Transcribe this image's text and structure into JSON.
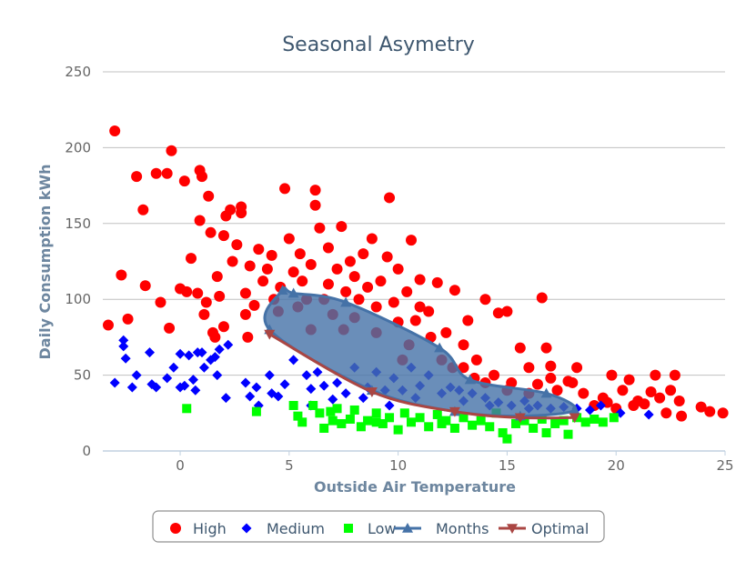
{
  "chart_data": {
    "type": "scatter",
    "title": "Seasonal Asymetry",
    "xlabel": "Outside Air Temperature",
    "ylabel": "Daily Consumption kWh",
    "xlim": [
      -3.55,
      25
    ],
    "ylim": [
      0,
      250
    ],
    "xticks": [
      0,
      5,
      10,
      15,
      20,
      25
    ],
    "yticks": [
      0,
      50,
      100,
      150,
      200,
      250
    ],
    "grid": "horizontal",
    "legend_placement": "bottom",
    "series": [
      {
        "name": "High",
        "marker": "circle",
        "color": "#FF0000",
        "points": [
          [
            -3.3,
            83
          ],
          [
            -3,
            211
          ],
          [
            -2.7,
            116
          ],
          [
            -2.4,
            87
          ],
          [
            -2,
            181
          ],
          [
            -1.7,
            159
          ],
          [
            -1.6,
            109
          ],
          [
            -1.1,
            183
          ],
          [
            -0.9,
            98
          ],
          [
            -0.6,
            183
          ],
          [
            -0.4,
            198
          ],
          [
            -0.5,
            81
          ],
          [
            0,
            107
          ],
          [
            0.2,
            178
          ],
          [
            0.3,
            105
          ],
          [
            0.5,
            127
          ],
          [
            0.8,
            104
          ],
          [
            0.9,
            152
          ],
          [
            0.9,
            185
          ],
          [
            1,
            181
          ],
          [
            1.1,
            90
          ],
          [
            1.2,
            98
          ],
          [
            1.3,
            168
          ],
          [
            1.4,
            144
          ],
          [
            1.5,
            78
          ],
          [
            1.7,
            115
          ],
          [
            1.8,
            102
          ],
          [
            2,
            142
          ],
          [
            2.1,
            155
          ],
          [
            2.3,
            159
          ],
          [
            2.4,
            125
          ],
          [
            2.6,
            136
          ],
          [
            2.8,
            161
          ],
          [
            2.8,
            157
          ],
          [
            3,
            104
          ],
          [
            3.1,
            75
          ],
          [
            3.2,
            122
          ],
          [
            3.4,
            96
          ],
          [
            3.6,
            133
          ],
          [
            3.8,
            112
          ],
          [
            4,
            120
          ],
          [
            4.2,
            129
          ],
          [
            4.3,
            100
          ],
          [
            4.5,
            92
          ],
          [
            4.8,
            173
          ],
          [
            5,
            140
          ],
          [
            5.2,
            118
          ],
          [
            5.4,
            95
          ],
          [
            5.6,
            112
          ],
          [
            6,
            123
          ],
          [
            6.2,
            172
          ],
          [
            6.2,
            162
          ],
          [
            6.4,
            147
          ],
          [
            6.6,
            100
          ],
          [
            6.8,
            134
          ],
          [
            7.2,
            120
          ],
          [
            7.4,
            148
          ],
          [
            7.6,
            105
          ],
          [
            8,
            115
          ],
          [
            8.4,
            130
          ],
          [
            8.6,
            108
          ],
          [
            8.8,
            140
          ],
          [
            9.2,
            112
          ],
          [
            9.6,
            167
          ],
          [
            9.8,
            98
          ],
          [
            10,
            120
          ],
          [
            10.4,
            105
          ],
          [
            10.6,
            139
          ],
          [
            10.8,
            86
          ],
          [
            11,
            113
          ],
          [
            11.4,
            92
          ],
          [
            11.8,
            111
          ],
          [
            12.2,
            78
          ],
          [
            12.6,
            106
          ],
          [
            13,
            70
          ],
          [
            13.2,
            86
          ],
          [
            13.6,
            60
          ],
          [
            14,
            100
          ],
          [
            14.4,
            50
          ],
          [
            14.6,
            91
          ],
          [
            15,
            92
          ],
          [
            15.2,
            45
          ],
          [
            15.6,
            68
          ],
          [
            16,
            55
          ],
          [
            16.4,
            44
          ],
          [
            16.6,
            101
          ],
          [
            16.8,
            68
          ],
          [
            17,
            56
          ],
          [
            17.3,
            40
          ],
          [
            17.8,
            46
          ],
          [
            18.2,
            55
          ],
          [
            18.5,
            38
          ],
          [
            19,
            30
          ],
          [
            19.4,
            35
          ],
          [
            19.8,
            50
          ],
          [
            20,
            28
          ],
          [
            20.3,
            40
          ],
          [
            20.6,
            47
          ],
          [
            21,
            33
          ],
          [
            21.3,
            31
          ],
          [
            21.6,
            39
          ],
          [
            21.8,
            50
          ],
          [
            22,
            35
          ],
          [
            22.3,
            25
          ],
          [
            22.5,
            40
          ],
          [
            22.7,
            50
          ],
          [
            22.9,
            33
          ],
          [
            23,
            23
          ],
          [
            23.9,
            29
          ],
          [
            24.3,
            26
          ],
          [
            24.9,
            25
          ],
          [
            5.5,
            130
          ],
          [
            6,
            80
          ],
          [
            7,
            90
          ],
          [
            8,
            88
          ],
          [
            9,
            78
          ],
          [
            9.5,
            128
          ],
          [
            10.5,
            70
          ],
          [
            12,
            60
          ],
          [
            13,
            55
          ],
          [
            14,
            45
          ],
          [
            15,
            40
          ],
          [
            17,
            48
          ],
          [
            18,
            45
          ],
          [
            11,
            95
          ],
          [
            7.8,
            125
          ],
          [
            3,
            90
          ],
          [
            2,
            82
          ],
          [
            1.6,
            75
          ],
          [
            4.6,
            108
          ],
          [
            5.8,
            100
          ],
          [
            6.8,
            110
          ],
          [
            7.5,
            80
          ],
          [
            8.2,
            100
          ],
          [
            9,
            95
          ],
          [
            10,
            85
          ],
          [
            10.2,
            60
          ],
          [
            11.5,
            75
          ],
          [
            12.5,
            55
          ],
          [
            13.5,
            48
          ],
          [
            16,
            38
          ],
          [
            19.6,
            32
          ],
          [
            20.8,
            30
          ]
        ]
      },
      {
        "name": "Medium",
        "marker": "diamond",
        "color": "#0000FF",
        "points": [
          [
            -3,
            45
          ],
          [
            -2.6,
            73
          ],
          [
            -2.6,
            69
          ],
          [
            -2.5,
            61
          ],
          [
            -2.2,
            42
          ],
          [
            -2,
            50
          ],
          [
            -1.4,
            65
          ],
          [
            -1.3,
            44
          ],
          [
            -1.1,
            42
          ],
          [
            -0.6,
            48
          ],
          [
            -0.3,
            55
          ],
          [
            0,
            64
          ],
          [
            0,
            42
          ],
          [
            0.2,
            43
          ],
          [
            0.4,
            63
          ],
          [
            0.6,
            47
          ],
          [
            0.7,
            40
          ],
          [
            0.8,
            65
          ],
          [
            1,
            65
          ],
          [
            1.1,
            55
          ],
          [
            1.4,
            60
          ],
          [
            1.6,
            62
          ],
          [
            1.7,
            50
          ],
          [
            1.8,
            67
          ],
          [
            2.1,
            35
          ],
          [
            2.2,
            70
          ],
          [
            3,
            45
          ],
          [
            3.2,
            36
          ],
          [
            3.5,
            42
          ],
          [
            4.1,
            50
          ],
          [
            4.2,
            38
          ],
          [
            4.5,
            36
          ],
          [
            4.8,
            44
          ],
          [
            5.2,
            60
          ],
          [
            5.8,
            50
          ],
          [
            6,
            41
          ],
          [
            6.3,
            52
          ],
          [
            6.6,
            43
          ],
          [
            7,
            34
          ],
          [
            7.2,
            45
          ],
          [
            7.6,
            38
          ],
          [
            8,
            55
          ],
          [
            8.6,
            42
          ],
          [
            9,
            52
          ],
          [
            9.4,
            40
          ],
          [
            9.8,
            48
          ],
          [
            10.2,
            40
          ],
          [
            10.6,
            55
          ],
          [
            11,
            43
          ],
          [
            11.4,
            50
          ],
          [
            12,
            38
          ],
          [
            12.4,
            42
          ],
          [
            13,
            33
          ],
          [
            13.4,
            38
          ],
          [
            14,
            35
          ],
          [
            14.6,
            32
          ],
          [
            15.2,
            30
          ],
          [
            15.8,
            33
          ],
          [
            16.4,
            30
          ],
          [
            17,
            28
          ],
          [
            17.6,
            29
          ],
          [
            18.2,
            28
          ],
          [
            18.8,
            27
          ],
          [
            19.3,
            30
          ],
          [
            20.2,
            25
          ],
          [
            21.5,
            24
          ],
          [
            3.6,
            30
          ],
          [
            6,
            30
          ],
          [
            8.4,
            35
          ],
          [
            9.6,
            30
          ],
          [
            10.8,
            35
          ],
          [
            12.8,
            40
          ],
          [
            14.2,
            30
          ],
          [
            16,
            28
          ]
        ]
      },
      {
        "name": "Low",
        "marker": "square",
        "color": "#00FF00",
        "points": [
          [
            0.3,
            28
          ],
          [
            3.5,
            26
          ],
          [
            5.2,
            30
          ],
          [
            5.4,
            23
          ],
          [
            5.6,
            19
          ],
          [
            6.1,
            30
          ],
          [
            6.4,
            25
          ],
          [
            6.6,
            15
          ],
          [
            6.9,
            26
          ],
          [
            7.2,
            28
          ],
          [
            7.4,
            18
          ],
          [
            7.8,
            21
          ],
          [
            8,
            27
          ],
          [
            8.3,
            16
          ],
          [
            8.6,
            20
          ],
          [
            9,
            25
          ],
          [
            9.3,
            18
          ],
          [
            9.6,
            22
          ],
          [
            10,
            14
          ],
          [
            10.3,
            25
          ],
          [
            10.6,
            19
          ],
          [
            11,
            22
          ],
          [
            11.4,
            16
          ],
          [
            11.8,
            24
          ],
          [
            12.2,
            20
          ],
          [
            12.6,
            15
          ],
          [
            13,
            22
          ],
          [
            13.4,
            17
          ],
          [
            13.8,
            20
          ],
          [
            14.2,
            16
          ],
          [
            14.5,
            25
          ],
          [
            14.8,
            12
          ],
          [
            15,
            8
          ],
          [
            15.4,
            18
          ],
          [
            15.8,
            20
          ],
          [
            16.2,
            15
          ],
          [
            16.6,
            21
          ],
          [
            16.8,
            12
          ],
          [
            17.2,
            18
          ],
          [
            17.6,
            20
          ],
          [
            17.8,
            11
          ],
          [
            18.2,
            22
          ],
          [
            18.6,
            19
          ],
          [
            19,
            21
          ],
          [
            19.4,
            19
          ],
          [
            19.9,
            22
          ],
          [
            12,
            18
          ],
          [
            9,
            19
          ],
          [
            7,
            20
          ]
        ]
      },
      {
        "name": "Months",
        "marker": "triangle",
        "color": "#4572A7",
        "closed": true,
        "points": [
          [
            4.7,
            106
          ],
          [
            5.2,
            104
          ],
          [
            7.6,
            98
          ],
          [
            11.9,
            68
          ],
          [
            13.3,
            47
          ],
          [
            16.8,
            38
          ],
          [
            18.1,
            27
          ],
          [
            15.6,
            23
          ],
          [
            12.6,
            26
          ],
          [
            8.8,
            40
          ],
          [
            4.1,
            80
          ]
        ]
      },
      {
        "name": "Optimal",
        "marker": "triangle-down",
        "color": "#AA4643",
        "points": [
          [
            4.1,
            77
          ],
          [
            8.8,
            39
          ],
          [
            12.6,
            26
          ],
          [
            15.6,
            22
          ],
          [
            18.1,
            22
          ]
        ]
      }
    ]
  }
}
